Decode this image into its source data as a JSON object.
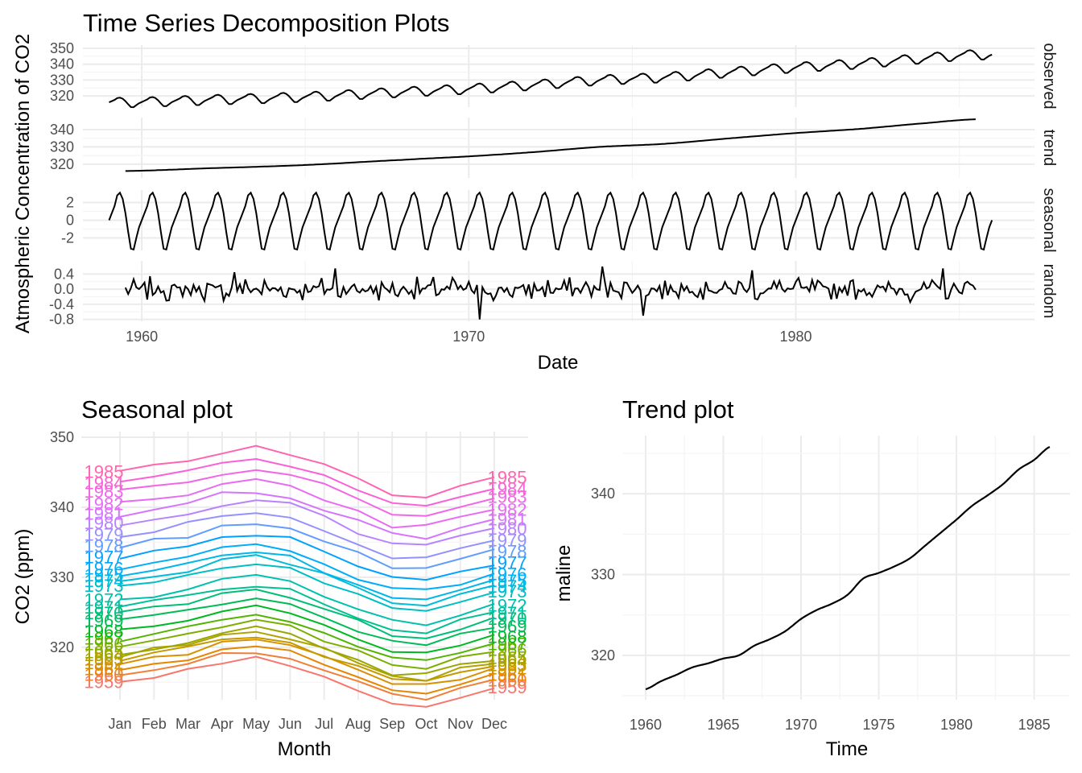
{
  "chart_data": [
    {
      "id": "decomposition",
      "type": "line",
      "title": "Time Series Decomposition Plots",
      "xlabel": "Date",
      "ylabel": "Atmospheric Concentration of CO2",
      "x_range": [
        1958.2,
        1987.3
      ],
      "x_ticks": [
        "1960",
        "1970",
        "1980"
      ],
      "x_tick_values": [
        1960,
        1970,
        1980
      ],
      "panels": [
        {
          "strip": "observed",
          "ylim": [
            313,
            352
          ],
          "y_ticks": [
            "320",
            "330",
            "340",
            "350"
          ],
          "y_tick_values": [
            320,
            330,
            340,
            350
          ],
          "start": 1959.0,
          "end": 1986.0,
          "component": "observed"
        },
        {
          "strip": "trend",
          "ylim": [
            312,
            347
          ],
          "y_ticks": [
            "320",
            "330",
            "340"
          ],
          "y_tick_values": [
            320,
            330,
            340
          ],
          "start": 1959.5,
          "end": 1985.5,
          "component": "trend"
        },
        {
          "strip": "seasonal",
          "ylim": [
            -3.4,
            3.4
          ],
          "y_ticks": [
            "-2",
            "0",
            "2"
          ],
          "y_tick_values": [
            -2,
            0,
            2
          ],
          "start": 1959.0,
          "end": 1986.0,
          "component": "seasonal"
        },
        {
          "strip": "random",
          "ylim": [
            -0.85,
            0.75
          ],
          "y_ticks": [
            "-0.8",
            "-0.4",
            "0.0",
            "0.4"
          ],
          "y_tick_values": [
            -0.8,
            -0.4,
            0.0,
            0.4
          ],
          "start": 1959.5,
          "end": 1985.5,
          "component": "random"
        }
      ],
      "trend_anchors": {
        "years": [
          1959.5,
          1962,
          1965,
          1968,
          1970,
          1972,
          1974,
          1976,
          1978,
          1980,
          1982,
          1984,
          1985.5
        ],
        "values": [
          316.0,
          317.6,
          319.5,
          322.5,
          324.5,
          327.0,
          330.0,
          331.8,
          335.0,
          338.0,
          340.5,
          343.8,
          346.0
        ]
      },
      "seasonal_monthly": [
        0.0,
        0.8,
        1.6,
        2.8,
        3.1,
        2.4,
        0.8,
        -1.3,
        -3.2,
        -3.3,
        -2.0,
        -0.8
      ]
    },
    {
      "id": "seasonal",
      "type": "line",
      "title": "Seasonal plot",
      "xlabel": "Month",
      "ylabel": "CO2 (ppm)",
      "ylim": [
        312.5,
        350.8
      ],
      "y_ticks": [
        "320",
        "330",
        "340",
        "350"
      ],
      "y_tick_values": [
        320,
        330,
        340,
        350
      ],
      "categories": [
        "Jan",
        "Feb",
        "Mar",
        "Apr",
        "May",
        "Jun",
        "Jul",
        "Aug",
        "Sep",
        "Oct",
        "Nov",
        "Dec"
      ],
      "years": [
        "1959",
        "1960",
        "1961",
        "1962",
        "1963",
        "1964",
        "1965",
        "1966",
        "1967",
        "1968",
        "1969",
        "1970",
        "1971",
        "1972",
        "1973",
        "1974",
        "1975",
        "1976",
        "1977",
        "1978",
        "1979",
        "1980",
        "1981",
        "1982",
        "1983",
        "1984",
        "1985"
      ],
      "year_colors": [
        "#F8766D",
        "#F17F38",
        "#E58700",
        "#D69100",
        "#C49A00",
        "#B0A200",
        "#99A800",
        "#7CAE00",
        "#53B400",
        "#00B81F",
        "#00BC56",
        "#00BE76",
        "#00C094",
        "#00C0AF",
        "#00BFC4",
        "#00BCD8",
        "#00B6EB",
        "#00ADFA",
        "#00A1FF",
        "#619CFF",
        "#9590FF",
        "#B983FF",
        "#D575FE",
        "#E76BF3",
        "#F365E6",
        "#FB61D7",
        "#FF64B0"
      ],
      "year_levels": [
        315.8,
        316.8,
        317.6,
        318.5,
        319.0,
        319.6,
        320.0,
        321.2,
        322.0,
        323.0,
        324.5,
        325.6,
        326.4,
        327.5,
        329.5,
        330.2,
        331.0,
        332.0,
        333.6,
        335.2,
        336.8,
        338.5,
        339.8,
        341.2,
        343.0,
        344.2,
        345.8
      ],
      "monthly_offsets": [
        -0.8,
        0.0,
        0.8,
        2.0,
        2.6,
        1.8,
        0.0,
        -2.0,
        -3.8,
        -4.1,
        -2.8,
        -1.6
      ]
    },
    {
      "id": "trend",
      "type": "line",
      "title": "Trend plot",
      "xlabel": "Time",
      "ylabel": "maline",
      "xlim": [
        1958.5,
        1987.3
      ],
      "ylim": [
        314.5,
        347.2
      ],
      "x_ticks": [
        "1960",
        "1965",
        "1970",
        "1975",
        "1980",
        "1985"
      ],
      "x_tick_values": [
        1960,
        1965,
        1970,
        1975,
        1980,
        1985
      ],
      "y_ticks": [
        "320",
        "330",
        "340"
      ],
      "y_tick_values": [
        320,
        330,
        340
      ],
      "x": [
        1960,
        1961,
        1962,
        1963,
        1964,
        1965,
        1966,
        1967,
        1968,
        1969,
        1970,
        1971,
        1972,
        1973,
        1974,
        1975,
        1976,
        1977,
        1978,
        1979,
        1980,
        1981,
        1982,
        1983,
        1984,
        1985,
        1986
      ],
      "values": [
        315.8,
        316.8,
        317.6,
        318.5,
        319.0,
        319.6,
        320.0,
        321.2,
        322.0,
        323.0,
        324.5,
        325.6,
        326.4,
        327.5,
        329.5,
        330.2,
        331.0,
        332.0,
        333.6,
        335.2,
        336.8,
        338.5,
        339.8,
        341.2,
        343.0,
        344.2,
        345.8
      ]
    }
  ]
}
